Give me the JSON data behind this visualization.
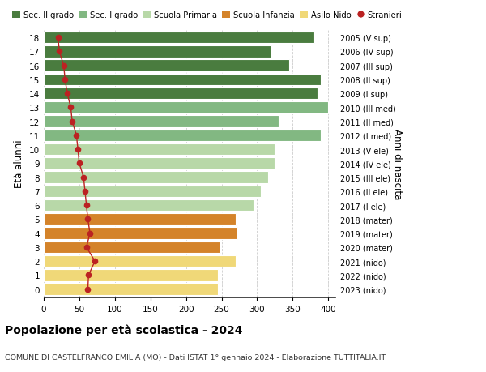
{
  "ages": [
    18,
    17,
    16,
    15,
    14,
    13,
    12,
    11,
    10,
    9,
    8,
    7,
    6,
    5,
    4,
    3,
    2,
    1,
    0
  ],
  "right_labels": [
    "2005 (V sup)",
    "2006 (IV sup)",
    "2007 (III sup)",
    "2008 (II sup)",
    "2009 (I sup)",
    "2010 (III med)",
    "2011 (II med)",
    "2012 (I med)",
    "2013 (V ele)",
    "2014 (IV ele)",
    "2015 (III ele)",
    "2016 (II ele)",
    "2017 (I ele)",
    "2018 (mater)",
    "2019 (mater)",
    "2020 (mater)",
    "2021 (nido)",
    "2022 (nido)",
    "2023 (nido)"
  ],
  "bar_values": [
    380,
    320,
    345,
    390,
    385,
    400,
    330,
    390,
    325,
    325,
    315,
    305,
    295,
    270,
    272,
    248,
    270,
    245,
    245
  ],
  "stranieri_values": [
    20,
    22,
    28,
    30,
    33,
    38,
    40,
    46,
    48,
    50,
    56,
    58,
    60,
    62,
    65,
    60,
    72,
    63,
    62
  ],
  "bar_colors": {
    "18": "#4a7c3f",
    "17": "#4a7c3f",
    "16": "#4a7c3f",
    "15": "#4a7c3f",
    "14": "#4a7c3f",
    "13": "#82b882",
    "12": "#82b882",
    "11": "#82b882",
    "10": "#b8d8a8",
    "9": "#b8d8a8",
    "8": "#b8d8a8",
    "7": "#b8d8a8",
    "6": "#b8d8a8",
    "5": "#d4832a",
    "4": "#d4832a",
    "3": "#d4832a",
    "2": "#f0d878",
    "1": "#f0d878",
    "0": "#f0d878"
  },
  "legend_labels": [
    "Sec. II grado",
    "Sec. I grado",
    "Scuola Primaria",
    "Scuola Infanzia",
    "Asilo Nido",
    "Stranieri"
  ],
  "legend_colors": [
    "#4a7c3f",
    "#82b882",
    "#b8d8a8",
    "#d4832a",
    "#f0d878",
    "#bb2222"
  ],
  "stranieri_color": "#bb2222",
  "ylabel_left": "Età alunni",
  "ylabel_right": "Anni di nascita",
  "xlim": [
    0,
    410
  ],
  "xticks": [
    0,
    50,
    100,
    150,
    200,
    250,
    300,
    350,
    400
  ],
  "bg_color": "#ffffff",
  "grid_color": "#cccccc",
  "title_main": "Popolazione per età scolastica - 2024",
  "title_sub": "COMUNE DI CASTELFRANCO EMILIA (MO) - Dati ISTAT 1° gennaio 2024 - Elaborazione TUTTITALIA.IT"
}
